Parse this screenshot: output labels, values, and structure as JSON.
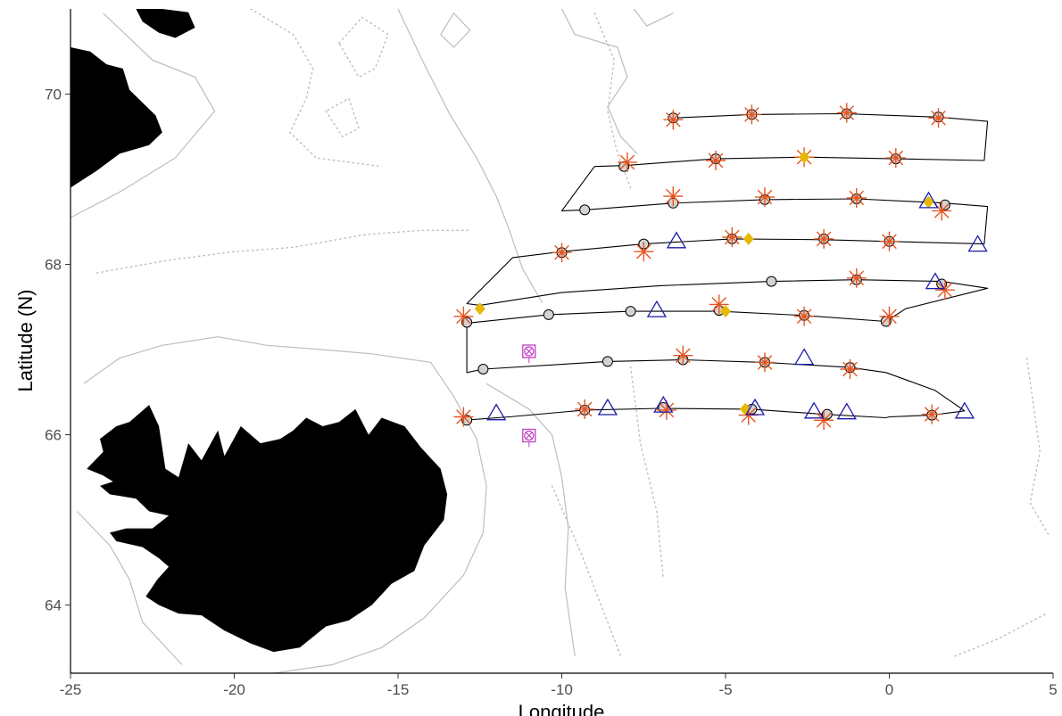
{
  "map": {
    "xlabel": "Longitude",
    "ylabel": "Latitude (N)",
    "xlim": [
      -25,
      5
    ],
    "ylim": [
      63.2,
      71
    ],
    "x_ticks": [
      -25,
      -20,
      -15,
      -10,
      -5,
      0,
      5
    ],
    "y_ticks": [
      64,
      66,
      68,
      70
    ],
    "x_tick_labels": [
      "-25",
      "-20",
      "-15",
      "-10",
      "-5",
      "0",
      "5"
    ],
    "y_tick_labels": [
      "64",
      "66",
      "68",
      "70"
    ],
    "colors": {
      "land": "#000000",
      "contour_solid": "#bdbdbd",
      "contour_dotted": "#bdbdbd",
      "track": "#000000",
      "circle_fill": "#d3d3d3",
      "asterisk": "#e8541e",
      "diamond": "#e6b800",
      "triangle": "#1a1aa8",
      "boxed_x": "#c040c0"
    },
    "track": [
      [
        -6.6,
        69.72
      ],
      [
        -4.2,
        69.76
      ],
      [
        -1.4,
        69.77
      ],
      [
        1.5,
        69.73
      ],
      [
        3.0,
        69.68
      ],
      [
        2.9,
        69.22
      ],
      [
        0.2,
        69.24
      ],
      [
        -2.6,
        69.26
      ],
      [
        -5.3,
        69.24
      ],
      [
        -8.1,
        69.16
      ],
      [
        -9.0,
        69.15
      ],
      [
        -10.0,
        68.63
      ],
      [
        -9.3,
        68.64
      ],
      [
        -6.6,
        68.72
      ],
      [
        -3.8,
        68.76
      ],
      [
        -1.0,
        68.77
      ],
      [
        1.7,
        68.72
      ],
      [
        3.0,
        68.68
      ],
      [
        2.9,
        68.24
      ],
      [
        0.0,
        68.27
      ],
      [
        -2.0,
        68.29
      ],
      [
        -4.8,
        68.3
      ],
      [
        -7.5,
        68.24
      ],
      [
        -10.0,
        68.15
      ],
      [
        -11.5,
        68.08
      ],
      [
        -12.9,
        67.54
      ],
      [
        -12.5,
        67.52
      ],
      [
        -10.0,
        67.67
      ],
      [
        -7.0,
        67.75
      ],
      [
        -3.6,
        67.8
      ],
      [
        -1.0,
        67.82
      ],
      [
        1.6,
        67.8
      ],
      [
        3.0,
        67.72
      ],
      [
        0.5,
        67.48
      ],
      [
        -0.1,
        67.33
      ],
      [
        -2.6,
        67.4
      ],
      [
        -5.2,
        67.45
      ],
      [
        -7.9,
        67.45
      ],
      [
        -10.4,
        67.41
      ],
      [
        -12.9,
        67.31
      ],
      [
        -12.9,
        66.73
      ],
      [
        -12.4,
        66.77
      ],
      [
        -8.6,
        66.86
      ],
      [
        -6.3,
        66.88
      ],
      [
        -3.8,
        66.85
      ],
      [
        -1.2,
        66.79
      ],
      [
        -0.1,
        66.73
      ],
      [
        1.4,
        66.52
      ],
      [
        2.3,
        66.28
      ],
      [
        1.3,
        66.23
      ],
      [
        0.0,
        66.21
      ],
      [
        -0.1,
        66.2
      ],
      [
        -2.0,
        66.24
      ],
      [
        -4.2,
        66.3
      ],
      [
        -7.0,
        66.31
      ],
      [
        -9.3,
        66.29
      ],
      [
        -11.6,
        66.21
      ],
      [
        -13.0,
        66.17
      ]
    ],
    "circles": [
      [
        -6.6,
        69.72
      ],
      [
        -4.2,
        69.76
      ],
      [
        -1.3,
        69.77
      ],
      [
        1.5,
        69.73
      ],
      [
        -8.1,
        69.15
      ],
      [
        -5.3,
        69.24
      ],
      [
        0.2,
        69.24
      ],
      [
        -9.3,
        68.64
      ],
      [
        -6.6,
        68.72
      ],
      [
        -3.8,
        68.76
      ],
      [
        -1.0,
        68.77
      ],
      [
        1.7,
        68.7
      ],
      [
        -10.0,
        68.14
      ],
      [
        -7.5,
        68.24
      ],
      [
        -4.8,
        68.3
      ],
      [
        -2.0,
        68.3
      ],
      [
        0.0,
        68.27
      ],
      [
        -3.6,
        67.8
      ],
      [
        -1.0,
        67.82
      ],
      [
        1.6,
        67.77
      ],
      [
        -12.9,
        67.32
      ],
      [
        -10.4,
        67.41
      ],
      [
        -7.9,
        67.45
      ],
      [
        -5.2,
        67.46
      ],
      [
        -2.6,
        67.4
      ],
      [
        -0.1,
        67.33
      ],
      [
        -12.4,
        66.77
      ],
      [
        -8.6,
        66.86
      ],
      [
        -6.3,
        66.88
      ],
      [
        -3.8,
        66.85
      ],
      [
        -1.2,
        66.79
      ],
      [
        -12.9,
        66.17
      ],
      [
        -9.3,
        66.29
      ],
      [
        -6.9,
        66.32
      ],
      [
        -4.2,
        66.3
      ],
      [
        -1.9,
        66.24
      ],
      [
        1.3,
        66.23
      ]
    ],
    "asterisks": [
      [
        -6.6,
        69.7
      ],
      [
        -4.2,
        69.76
      ],
      [
        -1.3,
        69.78
      ],
      [
        1.5,
        69.72
      ],
      [
        -8.0,
        69.2
      ],
      [
        -5.3,
        69.22
      ],
      [
        -2.6,
        69.26
      ],
      [
        0.2,
        69.25
      ],
      [
        -6.6,
        68.8
      ],
      [
        -3.8,
        68.79
      ],
      [
        -1.0,
        68.78
      ],
      [
        1.6,
        68.63
      ],
      [
        -10.0,
        68.14
      ],
      [
        -7.5,
        68.15
      ],
      [
        -4.8,
        68.32
      ],
      [
        -2.0,
        68.3
      ],
      [
        0.0,
        68.27
      ],
      [
        -1.0,
        67.84
      ],
      [
        1.7,
        67.7
      ],
      [
        -13.0,
        67.39
      ],
      [
        -5.2,
        67.53
      ],
      [
        -2.6,
        67.39
      ],
      [
        0.0,
        67.39
      ],
      [
        -6.3,
        66.93
      ],
      [
        -3.8,
        66.85
      ],
      [
        -1.2,
        66.77
      ],
      [
        -13.0,
        66.21
      ],
      [
        -9.3,
        66.3
      ],
      [
        -6.8,
        66.29
      ],
      [
        -4.3,
        66.23
      ],
      [
        -2.0,
        66.17
      ],
      [
        1.3,
        66.24
      ]
    ],
    "diamonds": [
      [
        -2.6,
        69.26
      ],
      [
        1.2,
        68.73
      ],
      [
        -4.3,
        68.3
      ],
      [
        -12.5,
        67.48
      ],
      [
        -5.0,
        67.45
      ],
      [
        -4.4,
        66.3
      ]
    ],
    "triangles": [
      [
        1.2,
        68.74
      ],
      [
        -6.5,
        68.27
      ],
      [
        2.7,
        68.23
      ],
      [
        1.4,
        67.79
      ],
      [
        -7.1,
        67.46
      ],
      [
        -2.6,
        66.9
      ],
      [
        -12.0,
        66.25
      ],
      [
        -8.6,
        66.31
      ],
      [
        -6.9,
        66.34
      ],
      [
        -4.1,
        66.31
      ],
      [
        -2.3,
        66.27
      ],
      [
        -1.3,
        66.26
      ],
      [
        2.3,
        66.27
      ]
    ],
    "boxed_x": [
      [
        -11.0,
        66.98
      ],
      [
        -11.0,
        65.99
      ]
    ],
    "iceland": [
      [
        -24.5,
        65.6
      ],
      [
        -24.0,
        65.52
      ],
      [
        -23.7,
        65.45
      ],
      [
        -24.1,
        65.4
      ],
      [
        -23.8,
        65.3
      ],
      [
        -23.0,
        65.25
      ],
      [
        -22.6,
        65.1
      ],
      [
        -22.0,
        65.05
      ],
      [
        -22.5,
        64.9
      ],
      [
        -23.3,
        64.9
      ],
      [
        -23.8,
        64.85
      ],
      [
        -23.6,
        64.75
      ],
      [
        -22.8,
        64.68
      ],
      [
        -22.3,
        64.55
      ],
      [
        -22.0,
        64.45
      ],
      [
        -22.35,
        64.3
      ],
      [
        -22.7,
        64.1
      ],
      [
        -22.3,
        64.0
      ],
      [
        -21.7,
        63.9
      ],
      [
        -21.0,
        63.88
      ],
      [
        -20.3,
        63.7
      ],
      [
        -19.5,
        63.55
      ],
      [
        -18.8,
        63.45
      ],
      [
        -18.0,
        63.5
      ],
      [
        -17.2,
        63.75
      ],
      [
        -16.5,
        63.82
      ],
      [
        -15.8,
        64.0
      ],
      [
        -15.2,
        64.25
      ],
      [
        -14.5,
        64.4
      ],
      [
        -14.2,
        64.7
      ],
      [
        -13.6,
        65.0
      ],
      [
        -13.5,
        65.3
      ],
      [
        -13.7,
        65.6
      ],
      [
        -14.3,
        65.85
      ],
      [
        -14.8,
        66.1
      ],
      [
        -15.5,
        66.2
      ],
      [
        -15.9,
        66.0
      ],
      [
        -16.3,
        66.3
      ],
      [
        -16.8,
        66.15
      ],
      [
        -17.3,
        66.1
      ],
      [
        -17.8,
        66.2
      ],
      [
        -18.2,
        66.05
      ],
      [
        -18.6,
        65.95
      ],
      [
        -19.2,
        65.9
      ],
      [
        -19.8,
        66.1
      ],
      [
        -20.3,
        65.75
      ],
      [
        -20.5,
        66.05
      ],
      [
        -21.0,
        65.7
      ],
      [
        -21.4,
        65.9
      ],
      [
        -21.7,
        65.5
      ],
      [
        -22.1,
        65.6
      ],
      [
        -22.3,
        66.1
      ],
      [
        -22.6,
        66.35
      ],
      [
        -23.2,
        66.15
      ],
      [
        -23.6,
        66.1
      ],
      [
        -24.1,
        65.95
      ],
      [
        -24.0,
        65.8
      ],
      [
        -24.5,
        65.6
      ]
    ],
    "greenland": [
      [
        -25.0,
        70.55
      ],
      [
        -24.4,
        70.5
      ],
      [
        -23.9,
        70.35
      ],
      [
        -23.4,
        70.3
      ],
      [
        -23.2,
        70.05
      ],
      [
        -22.8,
        69.9
      ],
      [
        -22.4,
        69.75
      ],
      [
        -22.2,
        69.55
      ],
      [
        -22.6,
        69.4
      ],
      [
        -23.5,
        69.3
      ],
      [
        -24.2,
        69.1
      ],
      [
        -24.8,
        68.95
      ],
      [
        -25.0,
        68.9
      ]
    ],
    "jan_mayen_area": [
      [
        -23.0,
        71.0
      ],
      [
        -22.2,
        71.0
      ],
      [
        -21.4,
        70.96
      ],
      [
        -21.2,
        70.78
      ],
      [
        -21.8,
        70.66
      ],
      [
        -22.3,
        70.72
      ],
      [
        -22.8,
        70.85
      ]
    ],
    "contours_solid": [
      [
        [
          -24.6,
          66.6
        ],
        [
          -23.5,
          66.9
        ],
        [
          -22.2,
          67.05
        ],
        [
          -20.5,
          67.15
        ],
        [
          -19.0,
          67.05
        ],
        [
          -17.3,
          67.0
        ],
        [
          -15.8,
          66.95
        ],
        [
          -14.0,
          66.85
        ],
        [
          -13.3,
          66.45
        ],
        [
          -12.6,
          65.95
        ],
        [
          -12.3,
          65.4
        ],
        [
          -12.4,
          64.85
        ],
        [
          -13.0,
          64.35
        ],
        [
          -14.2,
          63.85
        ],
        [
          -15.5,
          63.5
        ],
        [
          -17.0,
          63.3
        ],
        [
          -18.8,
          63.2
        ]
      ],
      [
        [
          -24.0,
          70.95
        ],
        [
          -22.5,
          70.4
        ],
        [
          -21.2,
          70.2
        ],
        [
          -20.6,
          69.8
        ],
        [
          -21.8,
          69.25
        ],
        [
          -23.5,
          68.85
        ],
        [
          -25.0,
          68.55
        ]
      ],
      [
        [
          -15.0,
          71.0
        ],
        [
          -14.2,
          70.35
        ],
        [
          -13.4,
          69.75
        ],
        [
          -12.6,
          69.25
        ],
        [
          -12.0,
          68.8
        ],
        [
          -11.6,
          68.4
        ],
        [
          -11.2,
          67.95
        ],
        [
          -10.6,
          67.55
        ]
      ],
      [
        [
          -10.0,
          71.0
        ],
        [
          -9.6,
          70.7
        ],
        [
          -8.3,
          70.55
        ],
        [
          -8.0,
          70.2
        ],
        [
          -8.6,
          69.85
        ],
        [
          -8.2,
          69.5
        ],
        [
          -7.7,
          69.3
        ]
      ],
      [
        [
          -24.8,
          65.1
        ],
        [
          -23.8,
          64.7
        ],
        [
          -23.2,
          64.3
        ],
        [
          -22.8,
          63.8
        ],
        [
          -21.6,
          63.3
        ]
      ],
      [
        [
          -12.3,
          66.6
        ],
        [
          -11.0,
          66.3
        ],
        [
          -10.3,
          66.0
        ],
        [
          -10.0,
          65.5
        ],
        [
          -9.8,
          64.9
        ],
        [
          -9.9,
          64.2
        ],
        [
          -9.6,
          63.4
        ]
      ],
      [
        [
          -7.8,
          71.0
        ],
        [
          -7.4,
          70.8
        ],
        [
          -6.6,
          70.95
        ]
      ],
      [
        [
          -13.7,
          70.7
        ],
        [
          -13.3,
          70.95
        ],
        [
          -12.8,
          70.75
        ],
        [
          -13.3,
          70.55
        ],
        [
          -13.7,
          70.7
        ]
      ]
    ],
    "contours_dotted": [
      [
        [
          -19.5,
          71.0
        ],
        [
          -18.2,
          70.7
        ],
        [
          -17.6,
          70.3
        ],
        [
          -17.8,
          69.95
        ],
        [
          -18.3,
          69.55
        ],
        [
          -17.5,
          69.25
        ],
        [
          -15.5,
          69.15
        ]
      ],
      [
        [
          -24.2,
          67.9
        ],
        [
          -22.0,
          68.05
        ],
        [
          -20.0,
          68.15
        ],
        [
          -18.2,
          68.2
        ],
        [
          -16.0,
          68.35
        ],
        [
          -14.3,
          68.4
        ],
        [
          -12.8,
          68.4
        ]
      ],
      [
        [
          -16.8,
          70.6
        ],
        [
          -16.1,
          70.9
        ],
        [
          -15.3,
          70.7
        ],
        [
          -15.7,
          70.3
        ],
        [
          -16.2,
          70.2
        ],
        [
          -16.8,
          70.6
        ]
      ],
      [
        [
          -9.0,
          70.95
        ],
        [
          -8.4,
          70.4
        ],
        [
          -8.6,
          69.8
        ],
        [
          -8.3,
          69.3
        ],
        [
          -7.9,
          68.9
        ]
      ],
      [
        [
          -10.3,
          65.4
        ],
        [
          -9.4,
          64.6
        ],
        [
          -8.8,
          64.0
        ],
        [
          -8.2,
          63.4
        ]
      ],
      [
        [
          -7.9,
          66.8
        ],
        [
          -7.6,
          65.9
        ],
        [
          -7.1,
          65.1
        ],
        [
          -6.9,
          64.3
        ]
      ],
      [
        [
          4.2,
          66.9
        ],
        [
          4.6,
          65.8
        ],
        [
          4.3,
          65.2
        ],
        [
          4.9,
          64.8
        ]
      ],
      [
        [
          2.0,
          63.4
        ],
        [
          3.3,
          63.6
        ],
        [
          4.8,
          63.9
        ]
      ],
      [
        [
          -17.2,
          69.8
        ],
        [
          -16.7,
          69.5
        ],
        [
          -16.2,
          69.6
        ],
        [
          -16.5,
          69.95
        ],
        [
          -17.2,
          69.8
        ]
      ]
    ]
  }
}
